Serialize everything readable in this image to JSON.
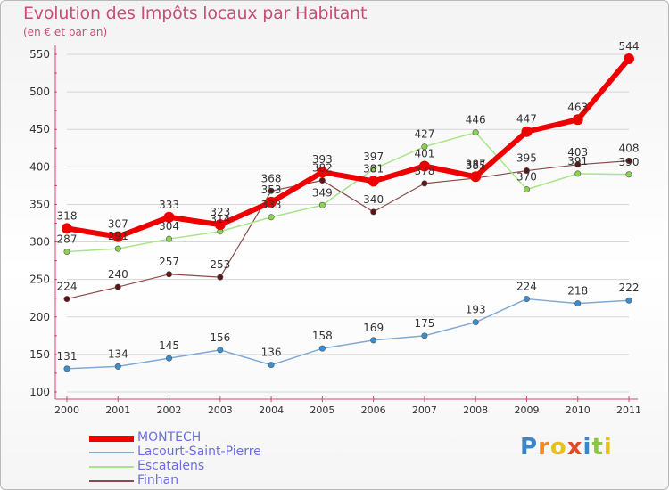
{
  "title": "Evolution des Impôts locaux par Habitant",
  "subtitle": "(en € et par an)",
  "colors": {
    "title": "#c64f7a",
    "axis": "#d04a6a",
    "grid": "#d6d6d6",
    "legend_text": "#6e6ee6"
  },
  "logo": {
    "text": "Proxiti",
    "letters": [
      {
        "ch": "P",
        "color": "#3b86c9"
      },
      {
        "ch": "r",
        "color": "#f08a24"
      },
      {
        "ch": "o",
        "color": "#e8c21c"
      },
      {
        "ch": "x",
        "color": "#e24b2a"
      },
      {
        "ch": "i",
        "color": "#3b86c9"
      },
      {
        "ch": "t",
        "color": "#8cc63f"
      },
      {
        "ch": "i",
        "color": "#e8c21c"
      }
    ]
  },
  "chart_data": {
    "type": "line",
    "title": "Evolution des Impôts locaux par Habitant",
    "subtitle": "(en € et par an)",
    "x": [
      "2000",
      "2001",
      "2002",
      "2003",
      "2004",
      "2005",
      "2006",
      "2007",
      "2008",
      "2009",
      "2010",
      "2011"
    ],
    "ylim": [
      100,
      550
    ],
    "yticks": [
      100,
      150,
      200,
      250,
      300,
      350,
      400,
      450,
      500,
      550
    ],
    "grid": true,
    "legend_position": "bottom-left",
    "series": [
      {
        "name": "MONTECH",
        "color": "#ee0000",
        "marker": "#ee0000",
        "width": 6,
        "values": [
          318,
          307,
          333,
          323,
          353,
          393,
          381,
          401,
          387,
          447,
          463,
          544
        ]
      },
      {
        "name": "Lacourt-Saint-Pierre",
        "color": "#7fa9d6",
        "marker": "#3a8fd0",
        "width": 1.5,
        "values": [
          131,
          134,
          145,
          156,
          136,
          158,
          169,
          175,
          193,
          224,
          218,
          222
        ]
      },
      {
        "name": "Escatalens",
        "color": "#a8e58a",
        "marker": "#8ad24f",
        "width": 1.5,
        "values": [
          287,
          291,
          304,
          314,
          333,
          349,
          397,
          427,
          446,
          370,
          391,
          390
        ]
      },
      {
        "name": "Finhan",
        "color": "#8a4a4a",
        "marker": "#5e1414",
        "width": 1.2,
        "values": [
          224,
          240,
          257,
          253,
          368,
          382,
          340,
          378,
          385,
          395,
          403,
          408
        ]
      }
    ]
  }
}
